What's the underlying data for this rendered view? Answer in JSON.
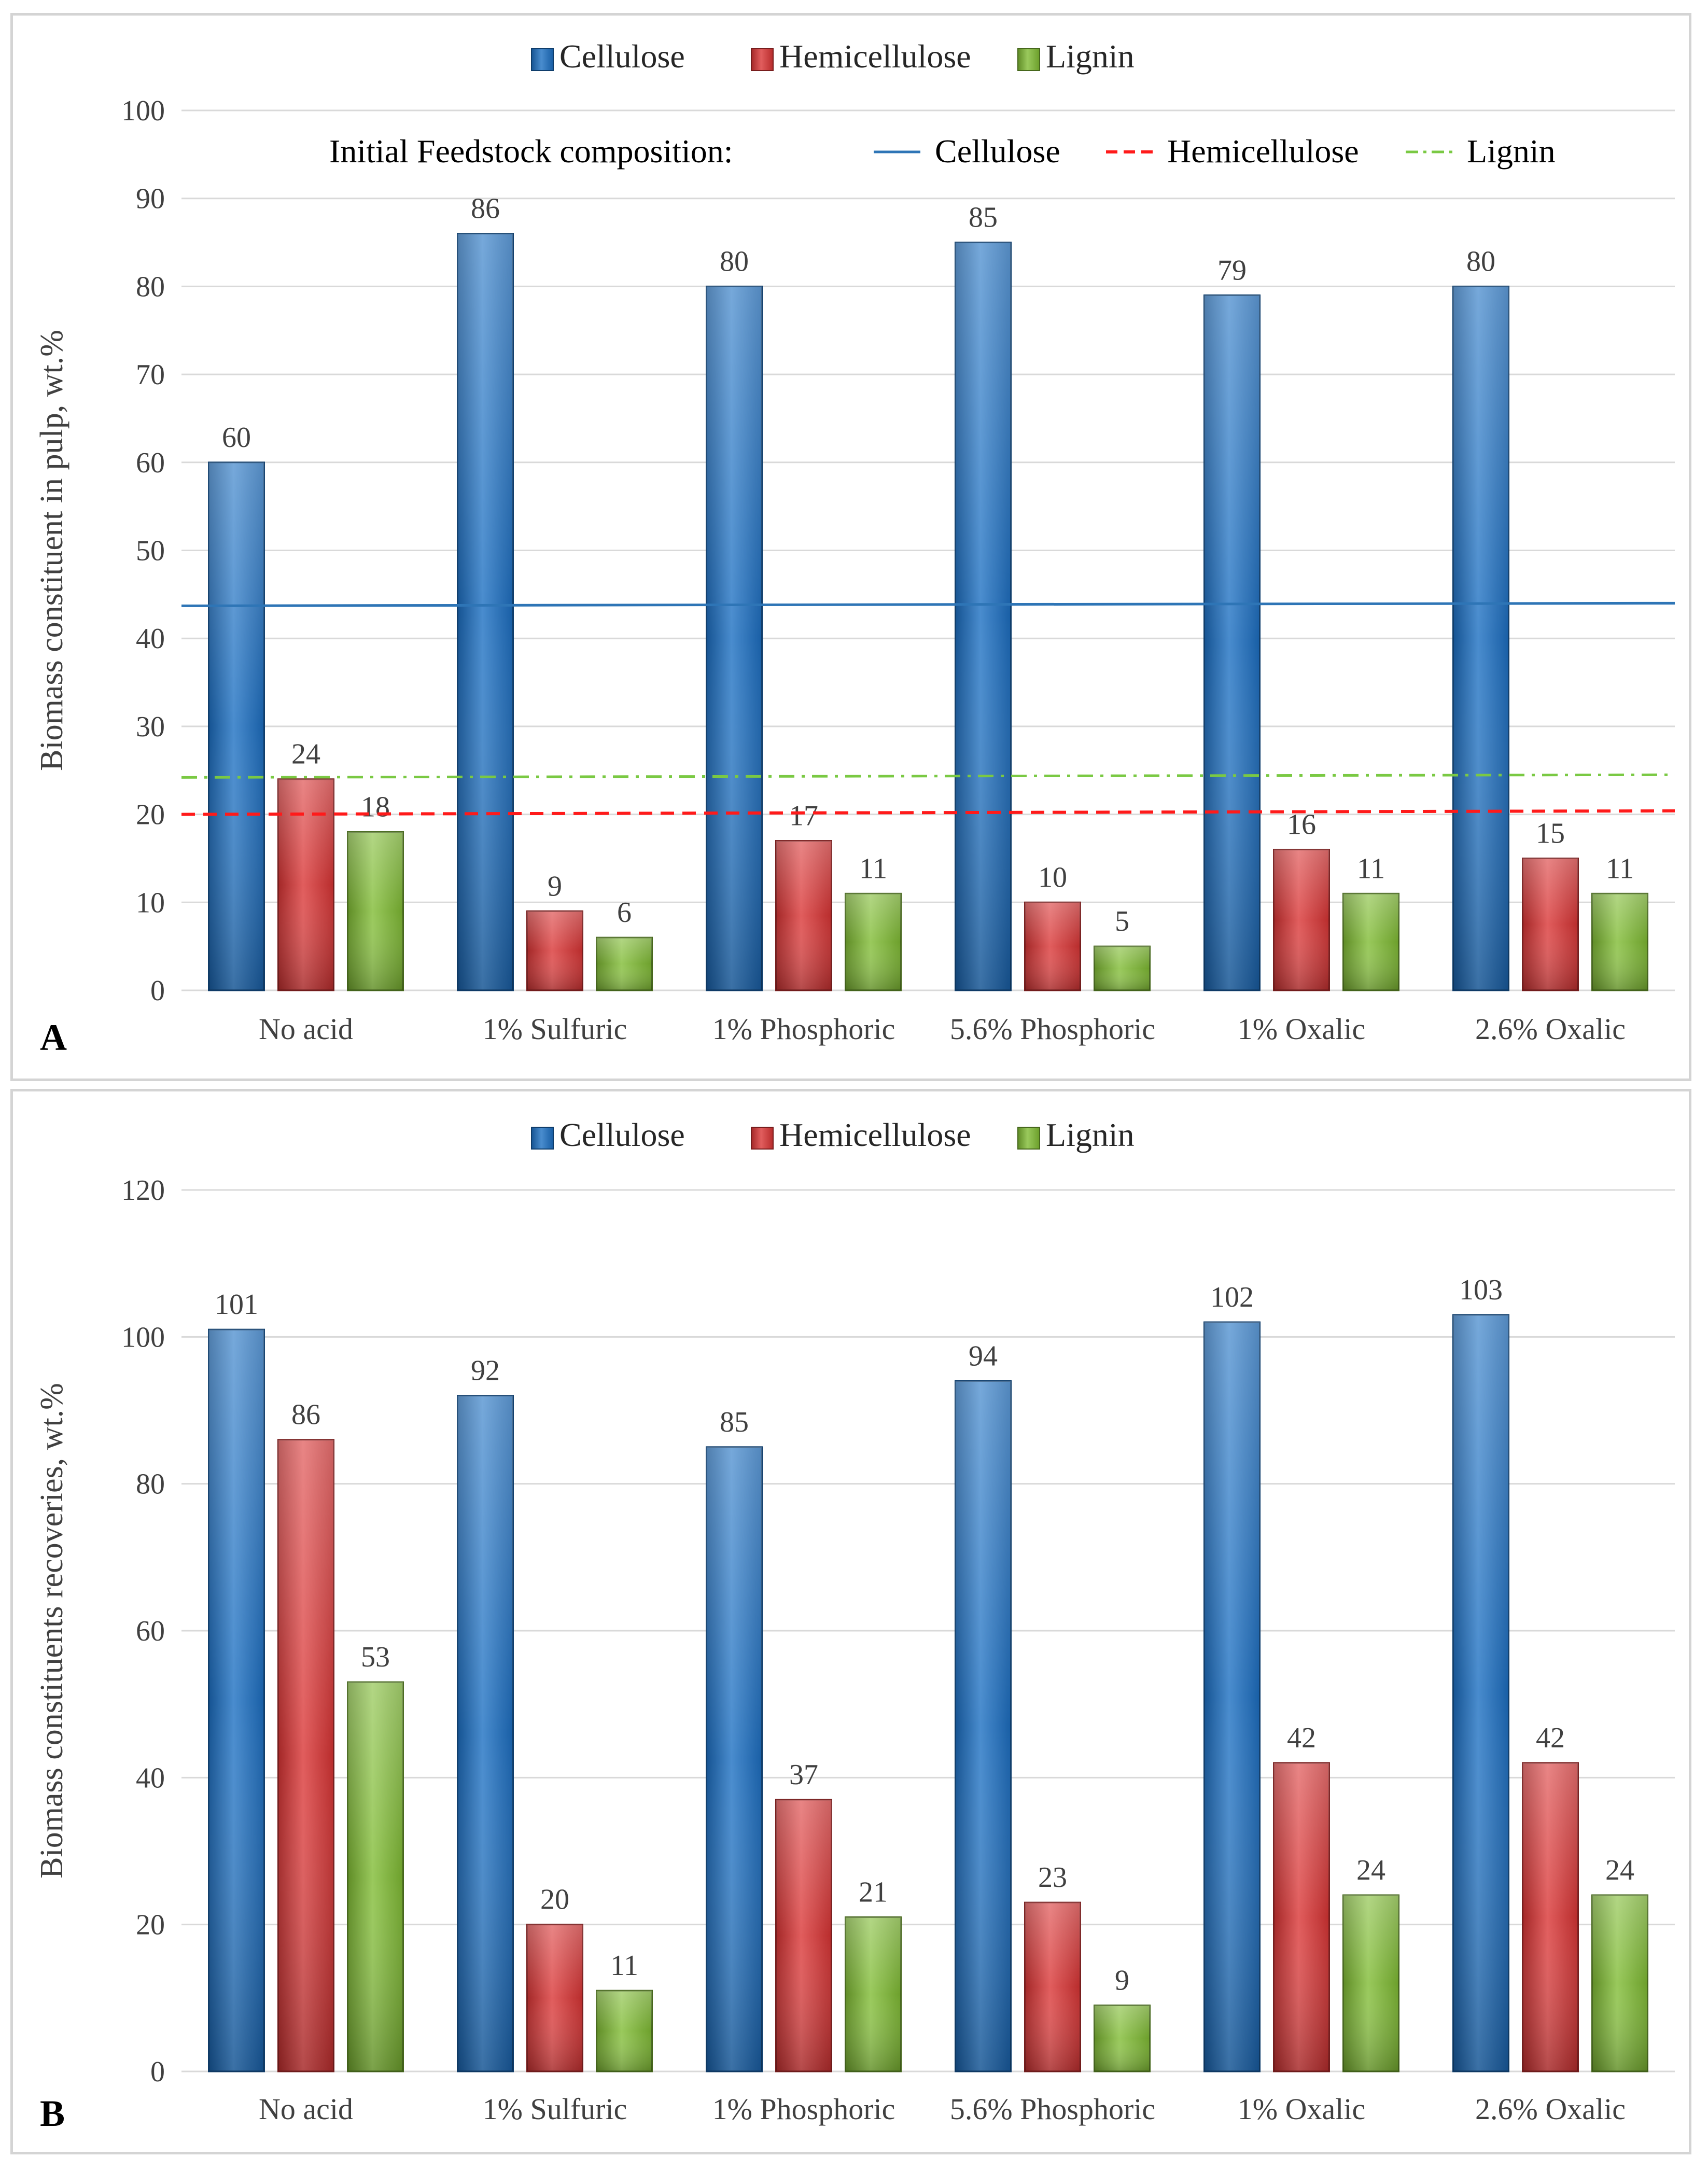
{
  "palette": {
    "cellulose": "#1c6fc2",
    "hemicellulose": "#d93434",
    "lignin": "#7fbb33",
    "ref_cellulose": "#2e75b6",
    "ref_hemicellulose": "#ff1a1a",
    "ref_lignin": "#7ac943"
  },
  "chart_data": [
    {
      "type": "bar",
      "panel_label": "A",
      "title": "",
      "ylabel": "Biomass constituent  in pulp, wt.%",
      "xlabel": "",
      "ylim": [
        0,
        100
      ],
      "yticks": [
        0,
        10,
        20,
        30,
        40,
        50,
        60,
        70,
        80,
        90,
        100
      ],
      "grid": true,
      "legend_position": "top-center",
      "categories": [
        "No acid",
        "1% Sulfuric",
        "1% Phosphoric",
        "5.6% Phosphoric",
        "1% Oxalic",
        "2.6% Oxalic"
      ],
      "series": [
        {
          "name": "Cellulose",
          "values": [
            60,
            86,
            80,
            85,
            79,
            80
          ]
        },
        {
          "name": "Hemicellulose",
          "values": [
            24,
            9,
            17,
            10,
            16,
            15
          ]
        },
        {
          "name": "Lignin",
          "values": [
            18,
            6,
            11,
            5,
            11,
            11
          ]
        }
      ],
      "reference_lines": {
        "title": "Initial Feedstock  composition:",
        "lines": [
          {
            "name": "Cellulose",
            "style": "solid",
            "y_start": 43.7,
            "y_end": 44.0
          },
          {
            "name": "Hemicellulose",
            "style": "dashed",
            "y_start": 20.0,
            "y_end": 20.4
          },
          {
            "name": "Lignin",
            "style": "dash-dot",
            "y_start": 24.2,
            "y_end": 24.5
          }
        ]
      }
    },
    {
      "type": "bar",
      "panel_label": "B",
      "title": "",
      "ylabel": "Biomass constituents  recoveries,  wt.%",
      "xlabel": "",
      "ylim": [
        0,
        120
      ],
      "yticks": [
        0,
        20,
        40,
        60,
        80,
        100,
        120
      ],
      "grid": true,
      "legend_position": "top-center",
      "categories": [
        "No acid",
        "1% Sulfuric",
        "1% Phosphoric",
        "5.6% Phosphoric",
        "1% Oxalic",
        "2.6% Oxalic"
      ],
      "series": [
        {
          "name": "Cellulose",
          "values": [
            101,
            92,
            85,
            94,
            102,
            103
          ]
        },
        {
          "name": "Hemicellulose",
          "values": [
            86,
            20,
            37,
            23,
            42,
            42
          ]
        },
        {
          "name": "Lignin",
          "values": [
            53,
            11,
            21,
            9,
            24,
            24
          ]
        }
      ]
    }
  ]
}
